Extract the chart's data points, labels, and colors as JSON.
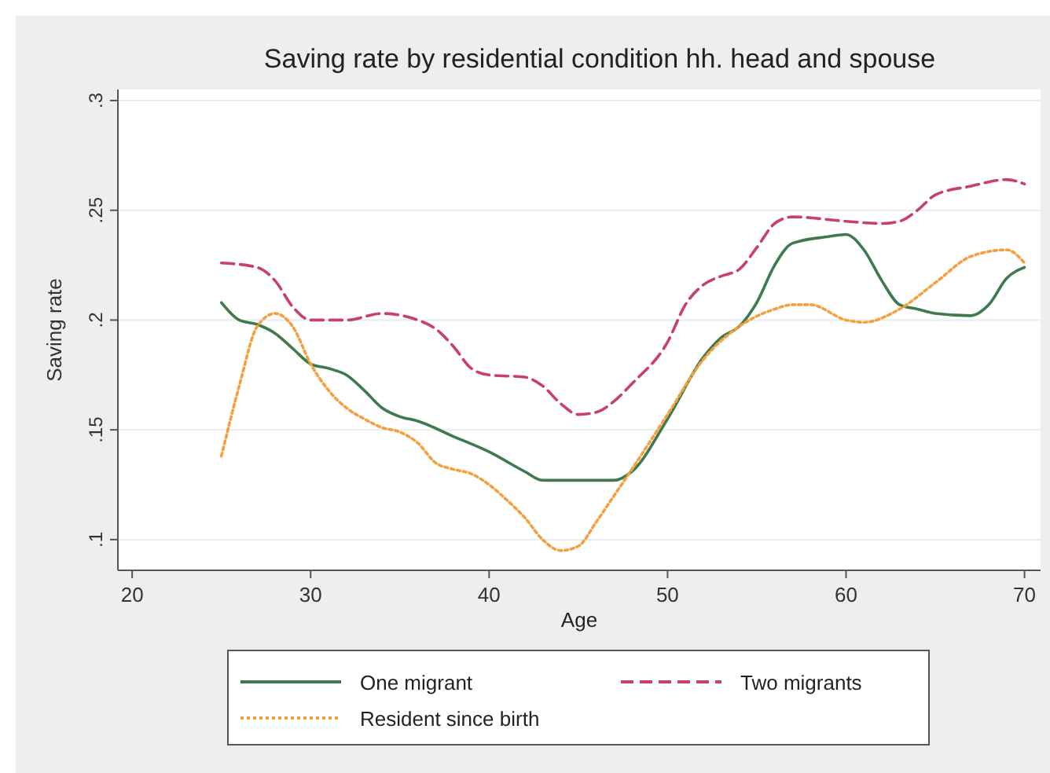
{
  "chart_data": {
    "type": "line",
    "title": "Saving rate by residential condition hh. head and spouse",
    "xlabel": "Age",
    "ylabel": "Saving rate",
    "xlim": [
      19.2,
      70.9
    ],
    "xticks": [
      20,
      30,
      40,
      50,
      60,
      70
    ],
    "ylim": [
      0.086,
      0.305
    ],
    "yticks": [
      {
        "value": 0.1,
        "label": ".1"
      },
      {
        "value": 0.15,
        "label": ".15"
      },
      {
        "value": 0.2,
        "label": ".2"
      },
      {
        "value": 0.25,
        "label": ".25"
      },
      {
        "value": 0.3,
        "label": ".3"
      }
    ],
    "grid": "y",
    "legend": "bottom",
    "series": [
      {
        "name": "One migrant",
        "color": "#3d7a4e",
        "line_style": "solid",
        "x": [
          25,
          26,
          27,
          28,
          29,
          30,
          31,
          32,
          33,
          34,
          35,
          36,
          38,
          40,
          42,
          43,
          45,
          47,
          48,
          50,
          52,
          53,
          54,
          55,
          56,
          57,
          59,
          60,
          61,
          62,
          63,
          64,
          65,
          67,
          68,
          69,
          70
        ],
        "values": [
          0.208,
          0.2,
          0.198,
          0.194,
          0.187,
          0.18,
          0.178,
          0.175,
          0.168,
          0.16,
          0.156,
          0.154,
          0.147,
          0.14,
          0.131,
          0.127,
          0.127,
          0.127,
          0.131,
          0.155,
          0.183,
          0.192,
          0.197,
          0.208,
          0.225,
          0.235,
          0.238,
          0.239,
          0.232,
          0.218,
          0.207,
          0.205,
          0.203,
          0.202,
          0.207,
          0.219,
          0.224
        ]
      },
      {
        "name": "Two migrants",
        "color": "#c8406e",
        "line_style": "dashed",
        "x": [
          25,
          27,
          28,
          29,
          30,
          32,
          34,
          36,
          37,
          38,
          39,
          40,
          42,
          43,
          44,
          45,
          46,
          47,
          48,
          50,
          51,
          52,
          53,
          54,
          55,
          56,
          57,
          60,
          62,
          63,
          64,
          65,
          67,
          69,
          70
        ],
        "values": [
          0.226,
          0.224,
          0.218,
          0.206,
          0.2,
          0.2,
          0.203,
          0.2,
          0.196,
          0.188,
          0.178,
          0.175,
          0.174,
          0.17,
          0.162,
          0.157,
          0.158,
          0.163,
          0.171,
          0.19,
          0.207,
          0.216,
          0.22,
          0.223,
          0.233,
          0.244,
          0.247,
          0.245,
          0.244,
          0.245,
          0.25,
          0.257,
          0.261,
          0.264,
          0.262
        ]
      },
      {
        "name": "Resident since birth",
        "color": "#f4a040",
        "line_style": "dotted",
        "x": [
          25,
          26,
          27,
          28,
          29,
          30,
          31,
          32,
          33,
          34,
          35,
          36,
          37,
          38,
          39,
          40,
          41,
          42,
          43,
          44,
          45,
          46,
          47,
          48,
          50,
          52,
          54,
          56,
          57,
          58,
          60,
          61,
          63,
          65,
          67,
          69,
          70
        ],
        "values": [
          0.138,
          0.17,
          0.197,
          0.203,
          0.197,
          0.18,
          0.168,
          0.16,
          0.155,
          0.151,
          0.149,
          0.144,
          0.135,
          0.132,
          0.13,
          0.125,
          0.118,
          0.11,
          0.1,
          0.095,
          0.097,
          0.108,
          0.12,
          0.132,
          0.157,
          0.182,
          0.197,
          0.205,
          0.207,
          0.207,
          0.2,
          0.199,
          0.205,
          0.217,
          0.229,
          0.232,
          0.226
        ]
      }
    ]
  }
}
